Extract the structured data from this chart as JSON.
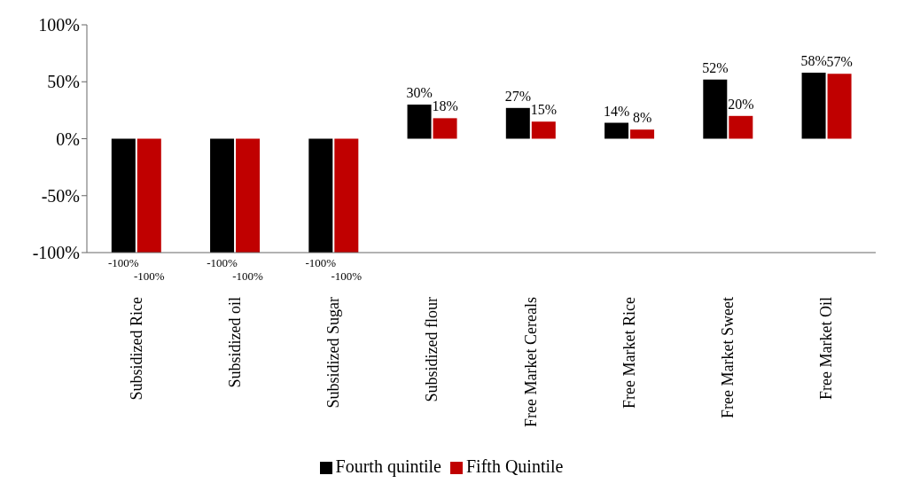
{
  "chart_data": {
    "type": "bar",
    "categories": [
      "Subsidized Rice",
      "Subsidized oil",
      "Subsidized Sugar",
      "Subsidized flour",
      "Free Market Cereals",
      "Free Market Rice",
      "Free Market Sweet",
      "Free Market Oil"
    ],
    "series": [
      {
        "name": "Fourth quintile",
        "color": "#000000",
        "values": [
          -100,
          -100,
          -100,
          30,
          27,
          14,
          52,
          58
        ],
        "value_labels": [
          "-100%",
          "-100%",
          "-100%",
          "30%",
          "27%",
          "14%",
          "52%",
          "58%"
        ]
      },
      {
        "name": "Fifth Quintile",
        "color": "#c00000",
        "values": [
          -100,
          -100,
          -100,
          18,
          15,
          8,
          20,
          57
        ],
        "value_labels": [
          "-100%",
          "-100%",
          "-100%",
          "18%",
          "15%",
          "8%",
          "20%",
          "57%"
        ]
      }
    ],
    "ylim": [
      -100,
      100
    ],
    "yticks": [
      {
        "value": -100,
        "label": "-100%"
      },
      {
        "value": -50,
        "label": "-50%"
      },
      {
        "value": 0,
        "label": "0%"
      },
      {
        "value": 50,
        "label": "50%"
      },
      {
        "value": 100,
        "label": "100%"
      }
    ],
    "grid": false,
    "legend": "bottom"
  }
}
